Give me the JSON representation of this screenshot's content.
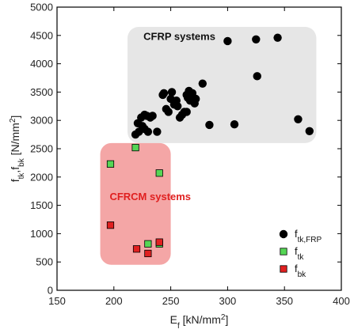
{
  "chart_data": {
    "type": "scatter",
    "xlabel": "E_f [kN/mm²]",
    "ylabel": "f_tk, f_bk [N/mm²]",
    "xlim": [
      150,
      400
    ],
    "ylim": [
      0,
      5000
    ],
    "xticks": [
      "150",
      "200",
      "250",
      "300",
      "350",
      "400"
    ],
    "yticks": [
      "0",
      "500",
      "1000",
      "1500",
      "2000",
      "2500",
      "3000",
      "3500",
      "4000",
      "4500",
      "5000"
    ],
    "regions": [
      {
        "label": "CFRP systems",
        "color": "#e6e6e6",
        "label_color": "#111111",
        "x_range": [
          212,
          378
        ],
        "y_range": [
          2600,
          4650
        ]
      },
      {
        "label": "CFRCM systems",
        "color": "#f4a6a6",
        "label_color": "#e02020",
        "x_range": [
          188,
          250
        ],
        "y_range": [
          450,
          2600
        ]
      }
    ],
    "legend": {
      "placement": "bottom-right"
    },
    "series": [
      {
        "name": "f_tk,FRP",
        "legend_main": "f",
        "legend_sub": "tk,FRP",
        "marker": "circle",
        "color": "#000000",
        "points": [
          [
            219,
            2750
          ],
          [
            221,
            2950
          ],
          [
            222,
            2800
          ],
          [
            224,
            3050
          ],
          [
            225,
            2900
          ],
          [
            227,
            2850
          ],
          [
            227,
            3100
          ],
          [
            229,
            3080
          ],
          [
            230,
            2800
          ],
          [
            232,
            3050
          ],
          [
            234,
            3080
          ],
          [
            238,
            2800
          ],
          [
            243,
            3450
          ],
          [
            244,
            3480
          ],
          [
            246,
            3200
          ],
          [
            248,
            3150
          ],
          [
            250,
            3380
          ],
          [
            251,
            3500
          ],
          [
            253,
            3280
          ],
          [
            255,
            3350
          ],
          [
            256,
            3250
          ],
          [
            258,
            3050
          ],
          [
            260,
            3100
          ],
          [
            262,
            3150
          ],
          [
            264,
            3450
          ],
          [
            264,
            3150
          ],
          [
            265,
            3400
          ],
          [
            266,
            3520
          ],
          [
            267,
            3350
          ],
          [
            269,
            3480
          ],
          [
            271,
            3300
          ],
          [
            272,
            3380
          ],
          [
            278,
            3650
          ],
          [
            284,
            2920
          ],
          [
            300,
            4400
          ],
          [
            306,
            2930
          ],
          [
            325,
            4430
          ],
          [
            326,
            3780
          ],
          [
            344,
            4460
          ],
          [
            362,
            3020
          ],
          [
            372,
            2810
          ]
        ]
      },
      {
        "name": "f_tk",
        "legend_main": "f",
        "legend_sub": "tk",
        "marker": "square",
        "color": "#55d655",
        "points": [
          [
            197,
            2230
          ],
          [
            219,
            2520
          ],
          [
            240,
            2070
          ],
          [
            230,
            820
          ],
          [
            240,
            820
          ]
        ]
      },
      {
        "name": "f_bk",
        "legend_main": "f",
        "legend_sub": "bk",
        "marker": "square",
        "color": "#e02020",
        "points": [
          [
            197,
            1150
          ],
          [
            220,
            730
          ],
          [
            230,
            650
          ],
          [
            240,
            850
          ]
        ]
      }
    ]
  }
}
